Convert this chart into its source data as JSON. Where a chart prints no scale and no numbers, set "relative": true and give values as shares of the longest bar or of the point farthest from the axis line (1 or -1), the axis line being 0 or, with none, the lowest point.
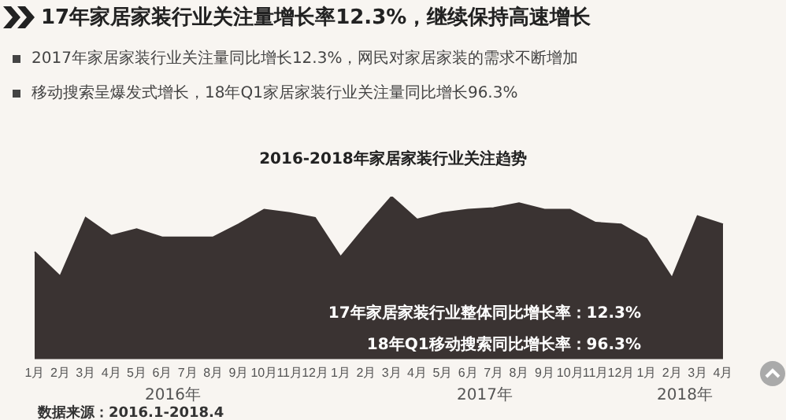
{
  "chart_data": {
    "type": "area",
    "title": "17年家居家装行业关注量增长率12.3%，继续保持高速增长",
    "subtitle": "2016-2018年家居家装行业关注趋势",
    "categories": [
      "1月",
      "2月",
      "3月",
      "4月",
      "5月",
      "6月",
      "7月",
      "8月",
      "9月",
      "10月",
      "11月",
      "12月",
      "1月",
      "2月",
      "3月",
      "4月",
      "5月",
      "6月",
      "7月",
      "8月",
      "9月",
      "10月",
      "11月",
      "12月",
      "1月",
      "2月",
      "3月",
      "4月"
    ],
    "values": [
      0.66,
      0.51,
      0.87,
      0.76,
      0.8,
      0.75,
      0.75,
      0.75,
      0.83,
      0.92,
      0.9,
      0.87,
      0.63,
      0.82,
      1,
      0.86,
      0.9,
      0.92,
      0.93,
      0.96,
      0.92,
      0.92,
      0.84,
      0.83,
      0.74,
      0.5,
      0.88,
      0.83
    ],
    "color": "#3a3332",
    "relative": true,
    "grid": false,
    "legend": false,
    "annotations": [
      "2017年家居家装行业关注量同比增长12.3%，网民对家居家装的需求不断增加",
      "移动搜索呈爆发式增长，18年Q1家居家装行业关注量同比增长96.3%",
      "17年家居家装行业整体同比增长率：12.3%",
      "18年Q1移动搜索同比增长率：96.3%",
      "2016年",
      "2017年",
      "2018年",
      "数据来源：2016.1-2018.4"
    ]
  }
}
